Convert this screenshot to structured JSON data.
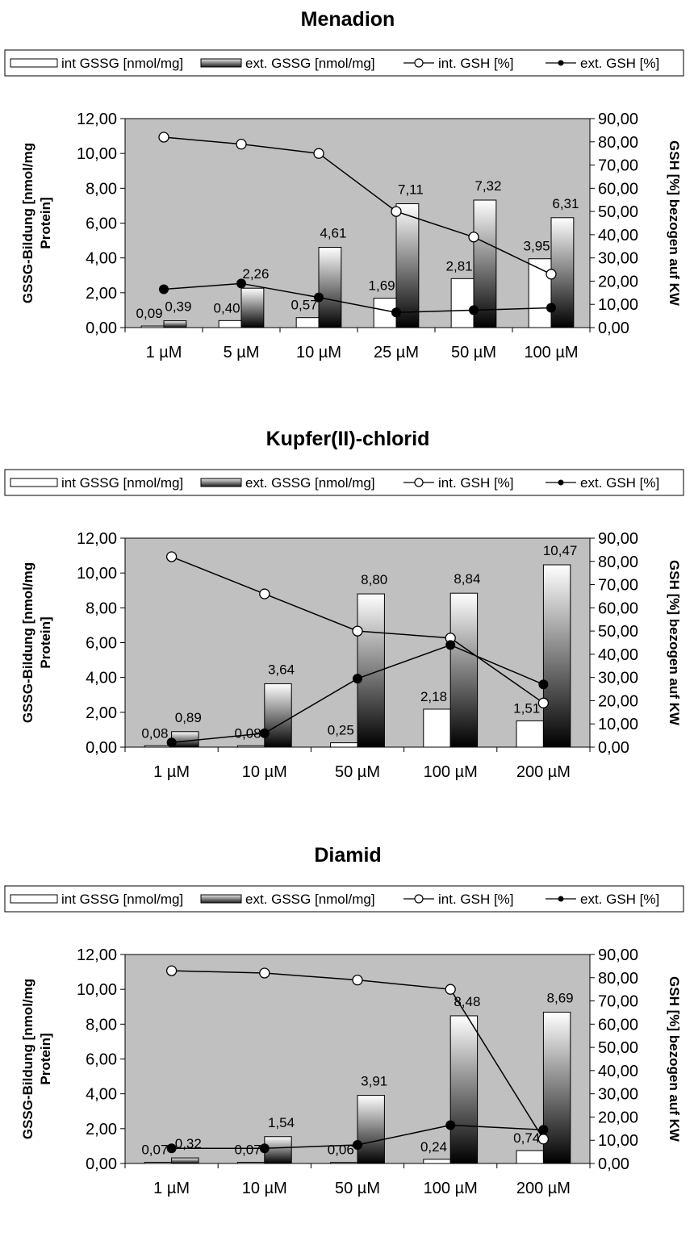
{
  "chart_data": [
    {
      "type": "bar",
      "title": "Menadion",
      "ylabel": "GSSG-Bildung [nmol/mg Protein]",
      "ylabel_lines": [
        "GSSG-Bildung [nmol/mg",
        "Protein]"
      ],
      "y2label": "GSH [%] bezogen auf KW",
      "ylim": [
        0,
        12
      ],
      "y2lim": [
        0,
        90
      ],
      "yticks": [
        "0,00",
        "2,00",
        "4,00",
        "6,00",
        "8,00",
        "10,00",
        "12,00"
      ],
      "y2ticks": [
        "0,00",
        "10,00",
        "20,00",
        "30,00",
        "40,00",
        "50,00",
        "60,00",
        "70,00",
        "80,00",
        "90,00"
      ],
      "categories": [
        "1 µM",
        "5 µM",
        "10 µM",
        "25 µM",
        "50 µM",
        "100 µM"
      ],
      "legend": [
        "int GSSG [nmol/mg]",
        "ext. GSSG [nmol/mg]",
        "int. GSH [%]",
        "ext. GSH [%]"
      ],
      "legend_position": "top",
      "grid": false,
      "series": [
        {
          "name": "int GSSG [nmol/mg]",
          "kind": "bar",
          "values": [
            0.09,
            0.4,
            0.57,
            1.69,
            2.81,
            3.95
          ],
          "labels": [
            "0,09",
            "0,40",
            "0,57",
            "1,69",
            "2,81",
            "3,95"
          ]
        },
        {
          "name": "ext. GSSG [nmol/mg]",
          "kind": "bar",
          "values": [
            0.39,
            2.26,
            4.61,
            7.11,
            7.32,
            6.31
          ],
          "labels": [
            "0,39",
            "2,26",
            "4,61",
            "7,11",
            "7,32",
            "6,31"
          ]
        },
        {
          "name": "int. GSH [%]",
          "kind": "line",
          "axis": "right",
          "values": [
            82,
            79,
            75,
            50,
            39,
            23
          ]
        },
        {
          "name": "ext. GSH [%]",
          "kind": "line",
          "axis": "right",
          "values": [
            16.5,
            19,
            13,
            6.5,
            7.5,
            8.5
          ]
        }
      ]
    },
    {
      "type": "bar",
      "title": "Kupfer(II)-chlorid",
      "ylabel": "GSSG-Bildung [nmol/mg Protein]",
      "ylabel_lines": [
        "GSSG-Bildung [nmol/mg",
        "Protein]"
      ],
      "y2label": "GSH [%] bezogen auf KW",
      "ylim": [
        0,
        12
      ],
      "y2lim": [
        0,
        90
      ],
      "yticks": [
        "0,00",
        "2,00",
        "4,00",
        "6,00",
        "8,00",
        "10,00",
        "12,00"
      ],
      "y2ticks": [
        "0,00",
        "10,00",
        "20,00",
        "30,00",
        "40,00",
        "50,00",
        "60,00",
        "70,00",
        "80,00",
        "90,00"
      ],
      "categories": [
        "1 µM",
        "10 µM",
        "50 µM",
        "100 µM",
        "200 µM"
      ],
      "legend": [
        "int GSSG [nmol/mg]",
        "ext. GSSG [nmol/mg]",
        "int. GSH [%]",
        "ext. GSH [%]"
      ],
      "legend_position": "top",
      "grid": false,
      "series": [
        {
          "name": "int GSSG [nmol/mg]",
          "kind": "bar",
          "values": [
            0.08,
            0.08,
            0.25,
            2.18,
            1.51
          ],
          "labels": [
            "0,08",
            "0,08",
            "0,25",
            "2,18",
            "1,51"
          ]
        },
        {
          "name": "ext. GSSG [nmol/mg]",
          "kind": "bar",
          "values": [
            0.89,
            3.64,
            8.8,
            8.84,
            10.47
          ],
          "labels": [
            "0,89",
            "3,64",
            "8,80",
            "8,84",
            "10,47"
          ]
        },
        {
          "name": "int. GSH [%]",
          "kind": "line",
          "axis": "right",
          "values": [
            82,
            66,
            50,
            47,
            19
          ]
        },
        {
          "name": "ext. GSH [%]",
          "kind": "line",
          "axis": "right",
          "values": [
            2,
            6,
            29.5,
            44,
            27
          ]
        }
      ]
    },
    {
      "type": "bar",
      "title": "Diamid",
      "ylabel": "GSSG-Bildung [nmol/mg Protein]",
      "ylabel_lines": [
        "GSSG-Bildung [nmol/mg",
        "Protein]"
      ],
      "y2label": "GSH [%] bezogen auf KW",
      "ylim": [
        0,
        12
      ],
      "y2lim": [
        0,
        90
      ],
      "yticks": [
        "0,00",
        "2,00",
        "4,00",
        "6,00",
        "8,00",
        "10,00",
        "12,00"
      ],
      "y2ticks": [
        "0,00",
        "10,00",
        "20,00",
        "30,00",
        "40,00",
        "50,00",
        "60,00",
        "70,00",
        "80,00",
        "90,00"
      ],
      "categories": [
        "1 µM",
        "10 µM",
        "50 µM",
        "100 µM",
        "200 µM"
      ],
      "legend": [
        "int GSSG [nmol/mg]",
        "ext. GSSG [nmol/mg]",
        "int. GSH [%]",
        "ext. GSH [%]"
      ],
      "legend_position": "top",
      "grid": false,
      "series": [
        {
          "name": "int GSSG [nmol/mg]",
          "kind": "bar",
          "values": [
            0.07,
            0.07,
            0.06,
            0.24,
            0.74
          ],
          "labels": [
            "0,07",
            "0,07",
            "0,06",
            "0,24",
            "0,74"
          ]
        },
        {
          "name": "ext. GSSG [nmol/mg]",
          "kind": "bar",
          "values": [
            0.32,
            1.54,
            3.91,
            8.48,
            8.69
          ],
          "labels": [
            "0,32",
            "1,54",
            "3,91",
            "8,48",
            "8,69"
          ]
        },
        {
          "name": "int. GSH [%]",
          "kind": "line",
          "axis": "right",
          "values": [
            83,
            82,
            79,
            75,
            10.5
          ]
        },
        {
          "name": "ext. GSH [%]",
          "kind": "line",
          "axis": "right",
          "values": [
            6.5,
            6.5,
            8,
            16.5,
            14.5
          ]
        }
      ]
    }
  ],
  "colors": {
    "plot_background": "#c0c0c0",
    "bar_int": "#ffffff",
    "bar_ext_top": "#ffffff",
    "bar_ext_bottom": "#000000",
    "line": "#000000"
  }
}
